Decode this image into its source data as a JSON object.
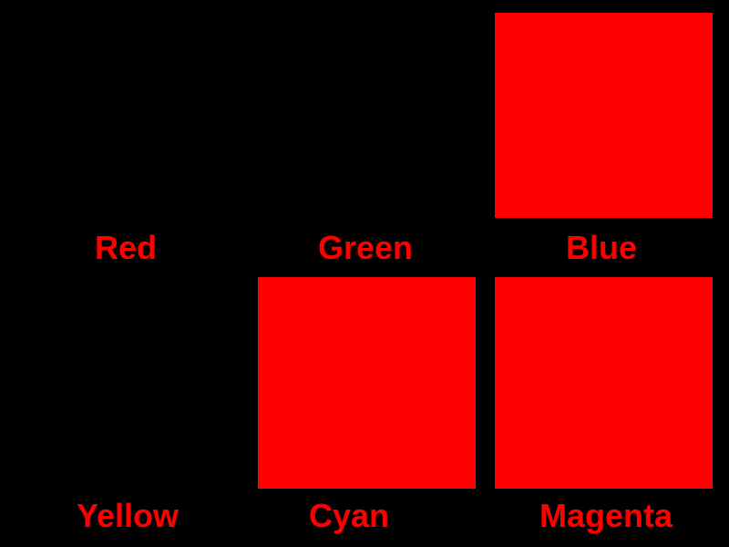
{
  "swatches": [
    {
      "label": "Red",
      "color": "#000000"
    },
    {
      "label": "Green",
      "color": "#000000"
    },
    {
      "label": "Blue",
      "color": "#ff0000"
    },
    {
      "label": "Yellow",
      "color": "#000000"
    },
    {
      "label": "Cyan",
      "color": "#ff0000"
    },
    {
      "label": "Magenta",
      "color": "#ff0000"
    }
  ],
  "label_color": "#ff0000",
  "background_color": "#000000"
}
